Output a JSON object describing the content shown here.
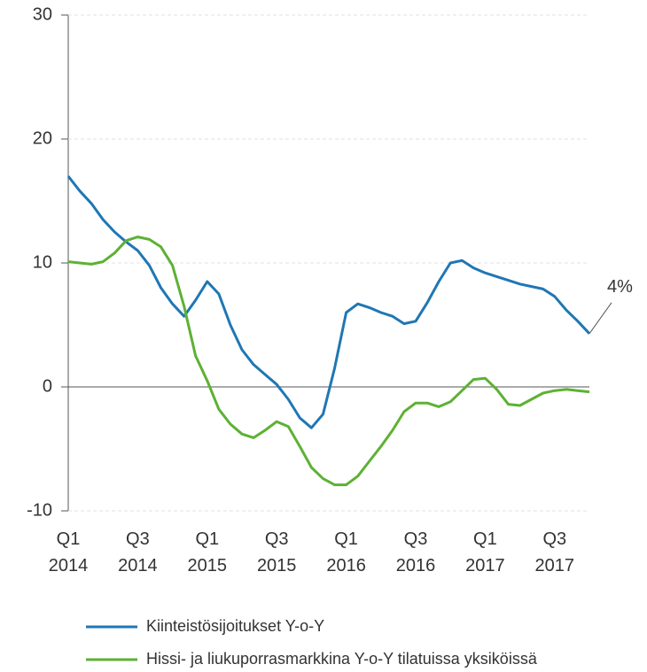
{
  "chart_data": {
    "type": "line",
    "categories": [
      "Q1 2014",
      null,
      null,
      null,
      null,
      null,
      "Q3 2014",
      null,
      null,
      null,
      null,
      null,
      "Q1 2015",
      null,
      null,
      null,
      null,
      null,
      "Q3 2015",
      null,
      null,
      null,
      null,
      null,
      "Q1 2016",
      null,
      null,
      null,
      null,
      null,
      "Q3 2016",
      null,
      null,
      null,
      null,
      null,
      "Q1 2017",
      null,
      null,
      null,
      null,
      null,
      "Q3 2017",
      null,
      null,
      null
    ],
    "series": [
      {
        "name": "Kiinteistösijoitukset Y-o-Y",
        "color": "#1f77b4",
        "values": [
          17.0,
          15.8,
          14.8,
          13.5,
          12.5,
          11.7,
          11.0,
          9.8,
          8.0,
          6.7,
          5.7,
          7.0,
          8.5,
          7.5,
          5.0,
          3.0,
          1.8,
          1.0,
          0.2,
          -1.0,
          -2.5,
          -3.3,
          -2.2,
          1.5,
          6.0,
          6.7,
          6.4,
          6.0,
          5.7,
          5.1,
          5.3,
          6.8,
          8.5,
          10.0,
          10.2,
          9.6,
          9.2,
          8.9,
          8.6,
          8.3,
          8.1,
          7.9,
          7.3,
          6.2,
          5.3,
          4.3
        ]
      },
      {
        "name": "Hissi- ja liukuporrasmarkkina Y-o-Y tilatuissa yksiköissä",
        "color": "#5db134",
        "values": [
          10.1,
          10.0,
          9.9,
          10.1,
          10.8,
          11.8,
          12.1,
          11.9,
          11.3,
          9.8,
          6.5,
          2.5,
          0.5,
          -1.8,
          -3.0,
          -3.8,
          -4.1,
          -3.5,
          -2.8,
          -3.2,
          -4.8,
          -6.5,
          -7.4,
          -7.9,
          -7.9,
          -7.2,
          -6.0,
          -4.8,
          -3.5,
          -2.0,
          -1.3,
          -1.3,
          -1.6,
          -1.2,
          -0.3,
          0.6,
          0.7,
          -0.2,
          -1.4,
          -1.5,
          -1.0,
          -0.5,
          -0.3,
          -0.2,
          -0.3,
          -0.4
        ]
      }
    ],
    "annotation": "4%",
    "ylim": [
      -10,
      30
    ],
    "yticks": [
      -10,
      0,
      10,
      20,
      30
    ],
    "grid": true
  }
}
